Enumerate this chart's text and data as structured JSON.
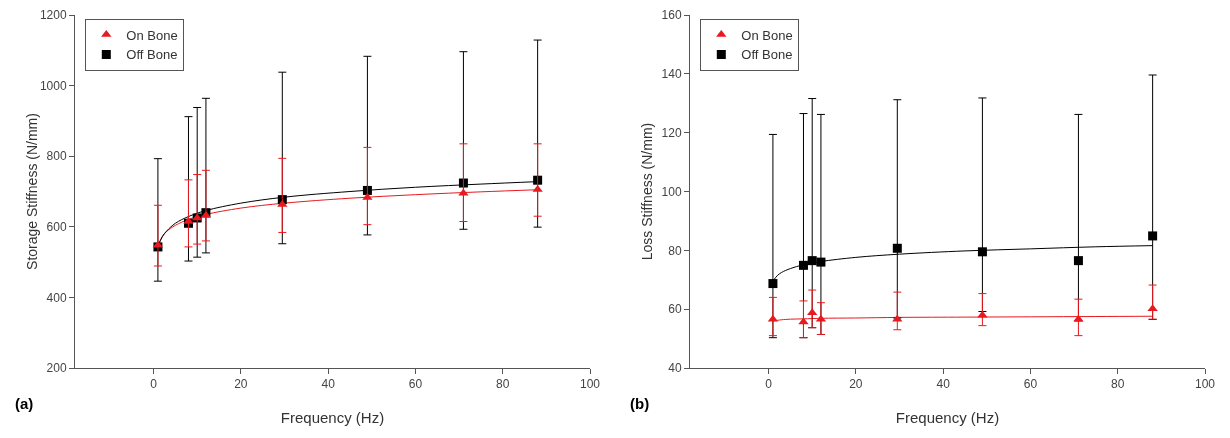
{
  "chart_data": [
    {
      "type": "scatter",
      "xlabel": "Frequency (Hz)",
      "ylabel": "Storage Stiffness (N/mm)",
      "annotations": [
        "(a)"
      ],
      "xlim": [
        -18,
        100
      ],
      "xticks": [
        0,
        20,
        40,
        60,
        80,
        100
      ],
      "ylim": [
        200,
        1200
      ],
      "yticks": [
        200,
        400,
        600,
        800,
        1000,
        1200
      ],
      "grid": false,
      "legend": "top left",
      "x": [
        1,
        8,
        10,
        12,
        29.5,
        49,
        71,
        88
      ],
      "series": [
        {
          "name": "On Bone",
          "color": "#e8191f",
          "marker": "triangle",
          "values": [
            548,
            615,
            625,
            632,
            663,
            683,
            695,
            706
          ],
          "errors": [
            [
              489,
              661
            ],
            [
              543,
              733
            ],
            [
              551,
              748
            ],
            [
              560,
              760
            ],
            [
              584,
              794
            ],
            [
              606,
              825
            ],
            [
              615,
              835
            ],
            [
              630,
              835
            ]
          ]
        },
        {
          "name": "Off Bone",
          "color": "#000000",
          "marker": "square",
          "values": [
            543,
            610,
            625,
            640,
            677,
            703,
            724,
            732
          ],
          "errors": [
            [
              446,
              793
            ],
            [
              503,
              912
            ],
            [
              514,
              938
            ],
            [
              526,
              964
            ],
            [
              552,
              1038
            ],
            [
              577,
              1083
            ],
            [
              593,
              1096
            ],
            [
              599,
              1129
            ]
          ]
        },
        {
          "type": "line",
          "color": "#e8191f",
          "x": [
            1,
            2,
            3,
            5,
            8,
            12,
            20,
            30,
            45,
            60,
            75,
            88
          ],
          "values": [
            548,
            572,
            587,
            604,
            621,
            635,
            653,
            667,
            681,
            691,
            699,
            705
          ]
        },
        {
          "type": "line",
          "color": "#000000",
          "x": [
            1,
            2,
            3,
            5,
            8,
            12,
            20,
            30,
            45,
            60,
            75,
            88
          ],
          "values": [
            543,
            572,
            588,
            610,
            629,
            646,
            667,
            684,
            700,
            712,
            721,
            728
          ]
        }
      ]
    },
    {
      "type": "scatter",
      "xlabel": "Frequency (Hz)",
      "ylabel": "Loss Stiffness (N/mm)",
      "annotations": [
        "(b)"
      ],
      "xlim": [
        -18,
        100
      ],
      "xticks": [
        0,
        20,
        40,
        60,
        80,
        100
      ],
      "ylim": [
        40,
        160
      ],
      "yticks": [
        40,
        60,
        80,
        100,
        120,
        140,
        160
      ],
      "grid": false,
      "legend": "top left",
      "x": [
        1,
        8,
        10,
        12,
        29.5,
        49,
        71,
        88
      ],
      "series": [
        {
          "name": "On Bone",
          "color": "#e8191f",
          "marker": "triangle",
          "values": [
            56.6,
            55.6,
            58.8,
            56.6,
            56.6,
            57.9,
            56.6,
            60.1
          ],
          "errors": [
            [
              51,
              64
            ],
            [
              50.3,
              62.8
            ],
            [
              53.7,
              66.5
            ],
            [
              51.4,
              62.2
            ],
            [
              53,
              65.8
            ],
            [
              54.4,
              65.3
            ],
            [
              51,
              63.4
            ],
            [
              56.6,
              68.2
            ]
          ]
        },
        {
          "name": "Off Bone",
          "color": "#000000",
          "marker": "square",
          "values": [
            68.7,
            74.9,
            76.5,
            76,
            80.7,
            79.5,
            76.5,
            84.9
          ],
          "errors": [
            [
              50.3,
              119.4
            ],
            [
              50.3,
              126.5
            ],
            [
              53.7,
              131.6
            ],
            [
              51.4,
              126.2
            ],
            [
              57,
              131.2
            ],
            [
              59.2,
              131.8
            ],
            [
              56,
              126.2
            ],
            [
              56.5,
              139.6
            ]
          ]
        },
        {
          "type": "line",
          "color": "#e8191f",
          "x": [
            1,
            2,
            3,
            5,
            8,
            12,
            20,
            30,
            45,
            60,
            75,
            88
          ],
          "values": [
            56,
            56.2,
            56.4,
            56.6,
            56.7,
            56.9,
            57,
            57.2,
            57.3,
            57.4,
            57.5,
            57.6
          ]
        },
        {
          "type": "line",
          "color": "#000000",
          "x": [
            1,
            2,
            3,
            5,
            8,
            12,
            20,
            30,
            45,
            60,
            75,
            88
          ],
          "values": [
            69.5,
            71.4,
            72.5,
            73.8,
            75.1,
            76.2,
            77.6,
            78.7,
            79.8,
            80.5,
            81.2,
            81.6
          ]
        }
      ]
    }
  ]
}
